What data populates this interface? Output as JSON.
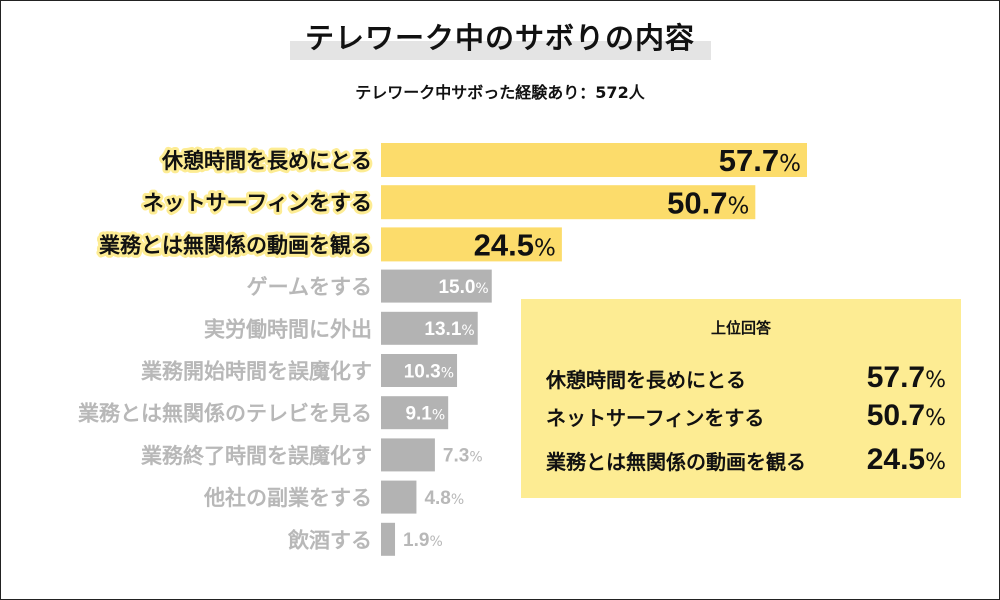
{
  "header": {
    "title": "テレワーク中のサボりの内容",
    "subtitle": "テレワーク中サボった経験あり：572人"
  },
  "colors": {
    "highlight_bar": "#fcdc6b",
    "gray_bar": "#b3b3b3",
    "highlight_text": "#111111",
    "gray_text": "#b8b8b8",
    "label_glow": "#fdec93",
    "box_bg": "#fdec93"
  },
  "chart_data": {
    "type": "bar",
    "orientation": "horizontal",
    "title": "テレワーク中のサボりの内容",
    "subtitle": "テレワーク中サボった経験あり：572人",
    "unit": "%",
    "categories": [
      "休憩時間を長めにとる",
      "ネットサーフィンをする",
      "業務とは無関係の動画を観る",
      "ゲームをする",
      "実労働時間に外出",
      "業務開始時間を誤魔化す",
      "業務とは無関係のテレビを見る",
      "業務終了時間を誤魔化す",
      "他社の副業をする",
      "飲酒する"
    ],
    "values": [
      57.7,
      50.7,
      24.5,
      15.0,
      13.1,
      10.3,
      9.1,
      7.3,
      4.8,
      1.9
    ],
    "highlighted": [
      true,
      true,
      true,
      false,
      false,
      false,
      false,
      false,
      false,
      false
    ],
    "xlim": [
      0,
      57.7
    ],
    "grid": false
  },
  "top_answers": {
    "title": "上位回答",
    "items": [
      {
        "label": "休憩時間を長めにとる",
        "value": "57.7",
        "unit": "%"
      },
      {
        "label": "ネットサーフィンをする",
        "value": "50.7",
        "unit": "%"
      },
      {
        "label": "業務とは無関係の動画を観る",
        "value": "24.5",
        "unit": "%"
      }
    ]
  }
}
